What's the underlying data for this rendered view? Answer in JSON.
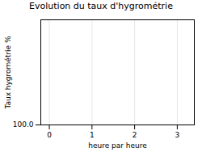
{
  "chart_data": {
    "type": "line",
    "title": "Evolution du taux d'hygrométrie",
    "xlabel": "heure par heure",
    "ylabel": "Taux hygrométrie %",
    "xlim": [
      -0.2,
      3.4
    ],
    "xticks": [
      0,
      1,
      2,
      3
    ],
    "ylim": [
      100,
      60
    ],
    "yticks": [
      {
        "value": 100,
        "label": "100.0"
      }
    ],
    "grid": true
  }
}
